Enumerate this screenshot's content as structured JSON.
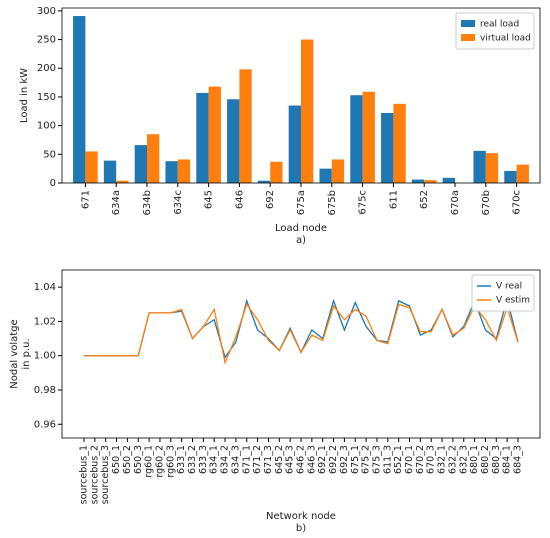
{
  "chart_data": [
    {
      "type": "bar",
      "ylabel": "Load in kW",
      "xlabel": "Load node",
      "caption": "a)",
      "categories": [
        "671",
        "634a",
        "634b",
        "634c",
        "645",
        "646",
        "692",
        "675a",
        "675b",
        "675c",
        "611",
        "652",
        "670a",
        "670b",
        "670c"
      ],
      "series": [
        {
          "name": "real load",
          "color": "#1f77b4",
          "values": [
            291,
            39,
            66,
            38,
            157,
            146,
            4,
            135,
            25,
            153,
            122,
            6,
            9,
            56,
            21
          ]
        },
        {
          "name": "virtual load",
          "color": "#ff7f0e",
          "values": [
            55,
            4,
            85,
            41,
            168,
            198,
            37,
            250,
            41,
            159,
            138,
            5,
            0,
            52,
            32
          ]
        }
      ],
      "ylim": [
        0,
        305
      ],
      "yticks": [
        0,
        50,
        100,
        150,
        200,
        250,
        300
      ],
      "legend": "upper right"
    },
    {
      "type": "line",
      "ylabel": [
        "Nodal volatge",
        "in p.u."
      ],
      "xlabel": "Network node",
      "caption": "b)",
      "categories": [
        "sourcebus_1",
        "sourcebus_2",
        "sourcebus_3",
        "650_1",
        "650_2",
        "650_3",
        "rg60_1",
        "rg60_2",
        "rg60_3",
        "633_1",
        "633_2",
        "633_3",
        "634_1",
        "634_2",
        "634_3",
        "671_1",
        "671_2",
        "671_3",
        "645_2",
        "645_3",
        "646_2",
        "646_3",
        "692_1",
        "692_2",
        "692_3",
        "675_1",
        "675_2",
        "675_3",
        "611_3",
        "652_1",
        "670_1",
        "670_2",
        "670_3",
        "632_1",
        "632_2",
        "632_3",
        "680_1",
        "680_2",
        "680_3",
        "684_1",
        "684_3"
      ],
      "series": [
        {
          "name": "V real",
          "color": "#1f77b4",
          "values": [
            1,
            1,
            1,
            1,
            1,
            1,
            1.025,
            1.025,
            1.025,
            1.026,
            1.01,
            1.017,
            1.021,
            0.999,
            1.008,
            1.032,
            1.015,
            1.01,
            1.003,
            1.016,
            1.002,
            1.015,
            1.01,
            1.032,
            1.015,
            1.031,
            1.017,
            1.009,
            1.008,
            1.032,
            1.029,
            1.012,
            1.015,
            1.027,
            1.011,
            1.017,
            1.032,
            1.015,
            1.01,
            1.033,
            1.008
          ]
        },
        {
          "name": "V estim",
          "color": "#ff7f0e",
          "values": [
            1,
            1,
            1,
            1,
            1,
            1,
            1.025,
            1.025,
            1.025,
            1.027,
            1.01,
            1.017,
            1.027,
            0.996,
            1.011,
            1.03,
            1.021,
            1.009,
            1.003,
            1.015,
            1.002,
            1.012,
            1.009,
            1.029,
            1.021,
            1.027,
            1.023,
            1.009,
            1.007,
            1.03,
            1.028,
            1.014,
            1.014,
            1.027,
            1.012,
            1.016,
            1.029,
            1.021,
            1.009,
            1.028,
            1.008
          ]
        }
      ],
      "ylim": [
        0.952,
        1.05
      ],
      "yticks": [
        0.96,
        0.98,
        {
          "value": 1,
          "label": "1.00"
        },
        1.02,
        1.04
      ],
      "legend": "upper right"
    }
  ]
}
